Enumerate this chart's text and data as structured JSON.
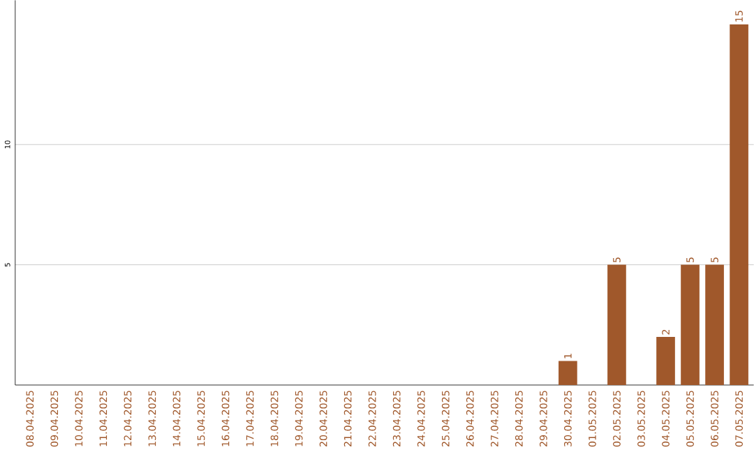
{
  "chart_data": {
    "type": "bar",
    "categories": [
      "08.04.2025",
      "09.04.2025",
      "10.04.2025",
      "11.04.2025",
      "12.04.2025",
      "13.04.2025",
      "14.04.2025",
      "15.04.2025",
      "16.04.2025",
      "17.04.2025",
      "18.04.2025",
      "19.04.2025",
      "20.04.2025",
      "21.04.2025",
      "22.04.2025",
      "23.04.2025",
      "24.04.2025",
      "25.04.2025",
      "26.04.2025",
      "27.04.2025",
      "28.04.2025",
      "29.04.2025",
      "30.04.2025",
      "01.05.2025",
      "02.05.2025",
      "03.05.2025",
      "04.05.2025",
      "05.05.2025",
      "06.05.2025",
      "07.05.2025"
    ],
    "values": [
      0,
      0,
      0,
      0,
      0,
      0,
      0,
      0,
      0,
      0,
      0,
      0,
      0,
      0,
      0,
      0,
      0,
      0,
      0,
      0,
      0,
      0,
      1,
      0,
      5,
      0,
      2,
      5,
      5,
      15
    ],
    "value_labels": [
      null,
      null,
      null,
      null,
      null,
      null,
      null,
      null,
      null,
      null,
      null,
      null,
      null,
      null,
      null,
      null,
      null,
      null,
      null,
      null,
      null,
      null,
      "1",
      null,
      "5",
      null,
      "2",
      "5",
      "5",
      "15"
    ],
    "color": "#a0582b",
    "ylim": [
      0,
      16
    ],
    "yticks": [
      5,
      10
    ],
    "grid": "y"
  }
}
